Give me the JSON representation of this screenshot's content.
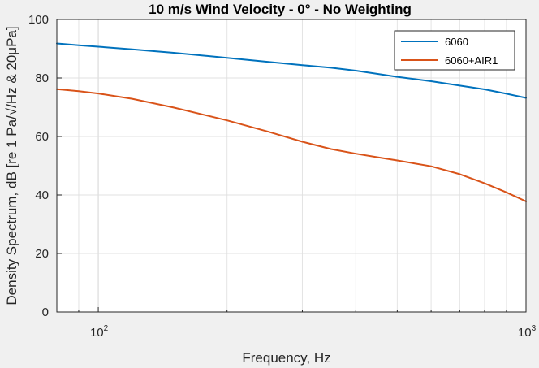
{
  "chart_data": {
    "type": "line",
    "title": "10 m/s Wind Velocity - 0° - No Weighting",
    "xlabel": "Frequency, Hz",
    "ylabel": "Density Spectrum, dB [re 1 Pa/√/Hz & 20μPa]",
    "xscale": "log",
    "xlim": [
      80,
      1000
    ],
    "ylim": [
      0,
      100
    ],
    "grid": true,
    "legend_position": "top-right",
    "xticks": [
      {
        "value": 100,
        "base": "10",
        "exp": "2"
      },
      {
        "value": 1000,
        "base": "10",
        "exp": "3"
      }
    ],
    "yticks": [
      "0",
      "20",
      "40",
      "60",
      "80",
      "100"
    ],
    "x": [
      80,
      90,
      100,
      120,
      150,
      200,
      250,
      300,
      350,
      400,
      450,
      500,
      600,
      700,
      800,
      900,
      1000
    ],
    "series": [
      {
        "name": "6060",
        "color": "#0072bd",
        "values": [
          91.8,
          91.2,
          90.7,
          89.8,
          88.6,
          86.9,
          85.5,
          84.4,
          83.5,
          82.5,
          81.4,
          80.4,
          78.9,
          77.4,
          76.1,
          74.6,
          73.2
        ]
      },
      {
        "name": "6060+AIR1",
        "color": "#d95319",
        "values": [
          76.2,
          75.5,
          74.7,
          72.9,
          69.9,
          65.5,
          61.6,
          58.2,
          55.7,
          54.1,
          52.9,
          51.8,
          49.8,
          47.1,
          44.0,
          40.9,
          37.8
        ]
      }
    ]
  }
}
